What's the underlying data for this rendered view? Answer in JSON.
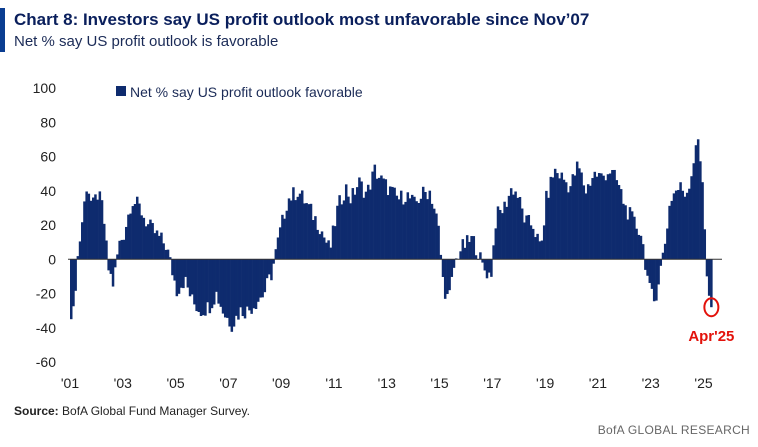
{
  "header": {
    "title": "Chart 8: Investors say US profit outlook most unfavorable since Nov’07",
    "subtitle": "Net % say US profit outlook is favorable"
  },
  "footer": {
    "source_label": "Source:",
    "source_text": "BofA Global Fund Manager Survey.",
    "brand": "BofA GLOBAL RESEARCH"
  },
  "colors": {
    "bar": "#0e2b6e",
    "accent": "#0a3d91",
    "highlight": "#e3120b"
  },
  "chart_data": {
    "type": "bar",
    "title": "Chart 8: Investors say US profit outlook most unfavorable since Nov’07",
    "ylabel": "Net % say US profit outlook is favorable",
    "xlabel": "",
    "ylim": [
      -60,
      100
    ],
    "yticks": [
      100,
      80,
      60,
      40,
      20,
      0,
      -20,
      -40,
      -60
    ],
    "xticks": [
      {
        "label": "'01",
        "year": 2001
      },
      {
        "label": "'03",
        "year": 2003
      },
      {
        "label": "'05",
        "year": 2005
      },
      {
        "label": "'07",
        "year": 2007
      },
      {
        "label": "'09",
        "year": 2009
      },
      {
        "label": "'11",
        "year": 2011
      },
      {
        "label": "'13",
        "year": 2013
      },
      {
        "label": "'15",
        "year": 2015
      },
      {
        "label": "'17",
        "year": 2017
      },
      {
        "label": "'19",
        "year": 2019
      },
      {
        "label": "'21",
        "year": 2021
      },
      {
        "label": "'23",
        "year": 2023
      },
      {
        "label": "'25",
        "year": 2025
      }
    ],
    "legend": "Net % say US profit outlook favorable",
    "legend_position": "top-left",
    "annotation": {
      "label": "Apr'25",
      "year": 2025.25,
      "value": -28
    },
    "series": [
      {
        "name": "Net % say US profit outlook favorable",
        "start": 2001.0,
        "step_months": 1,
        "anchors": [
          [
            2001.0,
            -30
          ],
          [
            2001.1,
            -32
          ],
          [
            2001.2,
            -5
          ],
          [
            2001.4,
            20
          ],
          [
            2001.6,
            45
          ],
          [
            2001.8,
            30
          ],
          [
            2002.0,
            38
          ],
          [
            2002.2,
            30
          ],
          [
            2002.4,
            -5
          ],
          [
            2002.6,
            -15
          ],
          [
            2002.8,
            8
          ],
          [
            2003.0,
            15
          ],
          [
            2003.3,
            35
          ],
          [
            2003.6,
            30
          ],
          [
            2003.9,
            20
          ],
          [
            2004.2,
            15
          ],
          [
            2004.6,
            8
          ],
          [
            2005.0,
            -18
          ],
          [
            2005.3,
            -12
          ],
          [
            2005.6,
            -25
          ],
          [
            2005.9,
            -30
          ],
          [
            2006.2,
            -28
          ],
          [
            2006.5,
            -20
          ],
          [
            2006.8,
            -32
          ],
          [
            2007.1,
            -38
          ],
          [
            2007.4,
            -30
          ],
          [
            2007.7,
            -30
          ],
          [
            2008.0,
            -25
          ],
          [
            2008.3,
            -20
          ],
          [
            2008.6,
            -8
          ],
          [
            2008.9,
            15
          ],
          [
            2009.2,
            35
          ],
          [
            2009.6,
            40
          ],
          [
            2010.0,
            30
          ],
          [
            2010.4,
            20
          ],
          [
            2010.8,
            5
          ],
          [
            2011.1,
            30
          ],
          [
            2011.4,
            42
          ],
          [
            2011.6,
            35
          ],
          [
            2011.9,
            45
          ],
          [
            2012.2,
            38
          ],
          [
            2012.5,
            52
          ],
          [
            2012.8,
            45
          ],
          [
            2013.1,
            40
          ],
          [
            2013.4,
            35
          ],
          [
            2013.7,
            38
          ],
          [
            2014.0,
            32
          ],
          [
            2014.3,
            38
          ],
          [
            2014.6,
            40
          ],
          [
            2014.9,
            20
          ],
          [
            2015.1,
            -15
          ],
          [
            2015.3,
            -25
          ],
          [
            2015.5,
            -5
          ],
          [
            2015.7,
            5
          ],
          [
            2015.9,
            8
          ],
          [
            2016.2,
            12
          ],
          [
            2016.4,
            5
          ],
          [
            2016.6,
            -5
          ],
          [
            2016.9,
            -10
          ],
          [
            2017.1,
            25
          ],
          [
            2017.4,
            30
          ],
          [
            2017.7,
            42
          ],
          [
            2017.9,
            38
          ],
          [
            2018.2,
            22
          ],
          [
            2018.5,
            20
          ],
          [
            2018.8,
            5
          ],
          [
            2019.0,
            35
          ],
          [
            2019.3,
            52
          ],
          [
            2019.6,
            48
          ],
          [
            2019.9,
            42
          ],
          [
            2020.2,
            55
          ],
          [
            2020.5,
            40
          ],
          [
            2020.8,
            50
          ],
          [
            2021.1,
            48
          ],
          [
            2021.4,
            52
          ],
          [
            2021.7,
            45
          ],
          [
            2022.0,
            30
          ],
          [
            2022.3,
            22
          ],
          [
            2022.6,
            15
          ],
          [
            2022.9,
            -18
          ],
          [
            2023.1,
            -25
          ],
          [
            2023.3,
            -8
          ],
          [
            2023.5,
            10
          ],
          [
            2023.7,
            35
          ],
          [
            2023.9,
            40
          ],
          [
            2024.1,
            42
          ],
          [
            2024.3,
            38
          ],
          [
            2024.5,
            50
          ],
          [
            2024.6,
            60
          ],
          [
            2024.7,
            72
          ],
          [
            2024.85,
            55
          ],
          [
            2024.95,
            40
          ],
          [
            2025.05,
            -5
          ],
          [
            2025.15,
            -20
          ],
          [
            2025.25,
            -28
          ]
        ]
      }
    ]
  }
}
